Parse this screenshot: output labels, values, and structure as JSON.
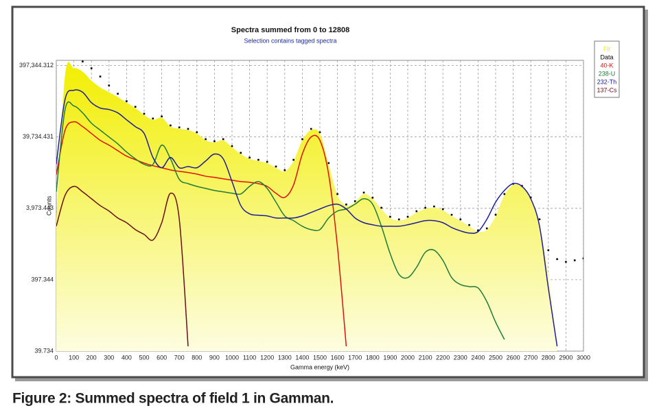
{
  "chart_data": {
    "type": "line",
    "title": "Spectra summed from 0 to 12808",
    "subtitle": "Selection contains tagged spectra",
    "xlabel": "Gamma energy (keV)",
    "ylabel": "Counts",
    "caption": "Figure 2: Summed spectra of field 1 in Gamman.",
    "log_y": true,
    "grid": true,
    "legend_position": "right",
    "xlim": [
      0,
      3000
    ],
    "xticks": [
      0,
      100,
      200,
      300,
      400,
      500,
      600,
      700,
      800,
      900,
      1000,
      1100,
      1200,
      1300,
      1400,
      1500,
      1600,
      1700,
      1800,
      1900,
      2000,
      2100,
      2200,
      2300,
      2400,
      2500,
      2600,
      2700,
      2800,
      2900,
      3000
    ],
    "ylim": [
      39.734,
      470000
    ],
    "yticks": [
      39.734,
      397.344,
      {
        "value": 3973.443,
        "label": "3,973.443"
      },
      {
        "value": 39734.431,
        "label": "39,734.431"
      },
      {
        "value": 397344.312,
        "label": "397,344.312"
      }
    ],
    "x": [
      0,
      50,
      100,
      150,
      200,
      250,
      300,
      350,
      400,
      450,
      500,
      550,
      600,
      650,
      700,
      750,
      800,
      850,
      900,
      950,
      1000,
      1050,
      1100,
      1150,
      1200,
      1250,
      1300,
      1350,
      1400,
      1450,
      1500,
      1550,
      1600,
      1650,
      1700,
      1750,
      1800,
      1850,
      1900,
      1950,
      2000,
      2050,
      2100,
      2150,
      2200,
      2250,
      2300,
      2350,
      2400,
      2450,
      2500,
      2550,
      2600,
      2650,
      2700,
      2750,
      2800,
      2850,
      2900,
      2950,
      3000
    ],
    "series": [
      {
        "name": "Fit",
        "color": "#f2ee00",
        "style": "area",
        "values": [
          2790,
          291000,
          364000,
          325000,
          244000,
          196000,
          168000,
          144000,
          120000,
          101000,
          80700,
          69100,
          73900,
          55400,
          51800,
          49500,
          44400,
          35600,
          33300,
          35600,
          28500,
          22900,
          19600,
          18300,
          17100,
          14700,
          13100,
          18300,
          35600,
          49500,
          44400,
          16400,
          6050,
          4340,
          4850,
          6320,
          5420,
          3890,
          2910,
          2670,
          2910,
          3480,
          3890,
          4060,
          3720,
          3110,
          2670,
          2230,
          1870,
          2000,
          3110,
          6050,
          8430,
          7890,
          5420,
          2230,
          473,
          46.4,
          null,
          null,
          null
        ]
      },
      {
        "name": "Data",
        "color": "#000000",
        "style": "points",
        "values": [
          null,
          null,
          null,
          453000,
          364000,
          279000,
          209000,
          160000,
          126000,
          105000,
          84000,
          72000,
          77000,
          57600,
          54000,
          51500,
          46200,
          37000,
          34600,
          37000,
          29600,
          23800,
          20400,
          19000,
          17800,
          15300,
          13600,
          19000,
          37000,
          51500,
          46200,
          17100,
          6300,
          4500,
          5000,
          6600,
          5600,
          4050,
          3030,
          2780,
          3030,
          3620,
          4050,
          4220,
          3870,
          3230,
          2780,
          2320,
          1950,
          2080,
          3230,
          6300,
          8770,
          8200,
          5640,
          2790,
          1030,
          772,
          707,
          742,
          790
        ]
      },
      {
        "name": "40-K",
        "color": "#e01010",
        "style": "line",
        "values": [
          11800,
          49500,
          64700,
          55400,
          44400,
          35600,
          30500,
          25500,
          21400,
          19100,
          17100,
          15700,
          14700,
          13700,
          13100,
          12600,
          12000,
          11200,
          10800,
          10300,
          9850,
          9420,
          9210,
          8820,
          8070,
          6470,
          5660,
          8430,
          22900,
          39700,
          35600,
          11800,
          1150,
          46.4,
          null,
          null,
          null,
          null,
          null,
          null,
          null,
          null,
          null,
          null,
          null,
          null,
          null,
          null,
          null,
          null,
          null,
          null,
          null,
          null,
          null,
          null,
          null,
          null,
          null,
          null,
          null
        ]
      },
      {
        "name": "238-U",
        "color": "#1f7a3a",
        "style": "line",
        "values": [
          6760,
          96300,
          108000,
          86400,
          61900,
          49500,
          39700,
          31800,
          24400,
          19600,
          16400,
          16400,
          30500,
          19600,
          10100,
          8820,
          8070,
          7550,
          7070,
          6760,
          6470,
          6320,
          8070,
          9420,
          7550,
          4850,
          3110,
          2670,
          2230,
          2000,
          2000,
          2910,
          3640,
          3890,
          4540,
          5420,
          4540,
          2230,
          921,
          473,
          425,
          592,
          963,
          1030,
          742,
          425,
          340,
          318,
          305,
          196,
          101,
          57.9,
          null,
          null,
          null,
          null,
          null,
          null,
          null,
          null,
          null
        ]
      },
      {
        "name": "232-Th",
        "color": "#1c1c9a",
        "style": "line",
        "values": [
          16400,
          134000,
          179000,
          168000,
          120000,
          101000,
          96300,
          86400,
          69100,
          55400,
          44400,
          20500,
          14700,
          20500,
          14700,
          15300,
          14700,
          18300,
          22900,
          19600,
          9420,
          4340,
          3330,
          3180,
          3110,
          2910,
          2910,
          2910,
          3110,
          3480,
          3890,
          4340,
          4540,
          3890,
          2910,
          2500,
          2340,
          2230,
          2230,
          2230,
          2340,
          2500,
          2670,
          2670,
          2500,
          2140,
          1920,
          1790,
          1870,
          2790,
          4850,
          7070,
          8820,
          8070,
          5420,
          2230,
          305,
          46.4,
          null,
          null,
          null
        ]
      },
      {
        "name": "137-Cs",
        "color": "#6a0d1c",
        "style": "line",
        "values": [
          2230,
          6050,
          8070,
          6760,
          5420,
          4340,
          3640,
          2910,
          2500,
          2000,
          1710,
          1430,
          2500,
          6470,
          2790,
          46.4,
          null,
          null,
          null,
          null,
          null,
          null,
          null,
          null,
          null,
          null,
          null,
          null,
          null,
          null,
          null,
          null,
          null,
          null,
          null,
          null,
          null,
          null,
          null,
          null,
          null,
          null,
          null,
          null,
          null,
          null,
          null,
          null,
          null,
          null,
          null,
          null,
          null,
          null,
          null,
          null,
          null,
          null,
          null,
          null,
          null
        ]
      }
    ]
  }
}
